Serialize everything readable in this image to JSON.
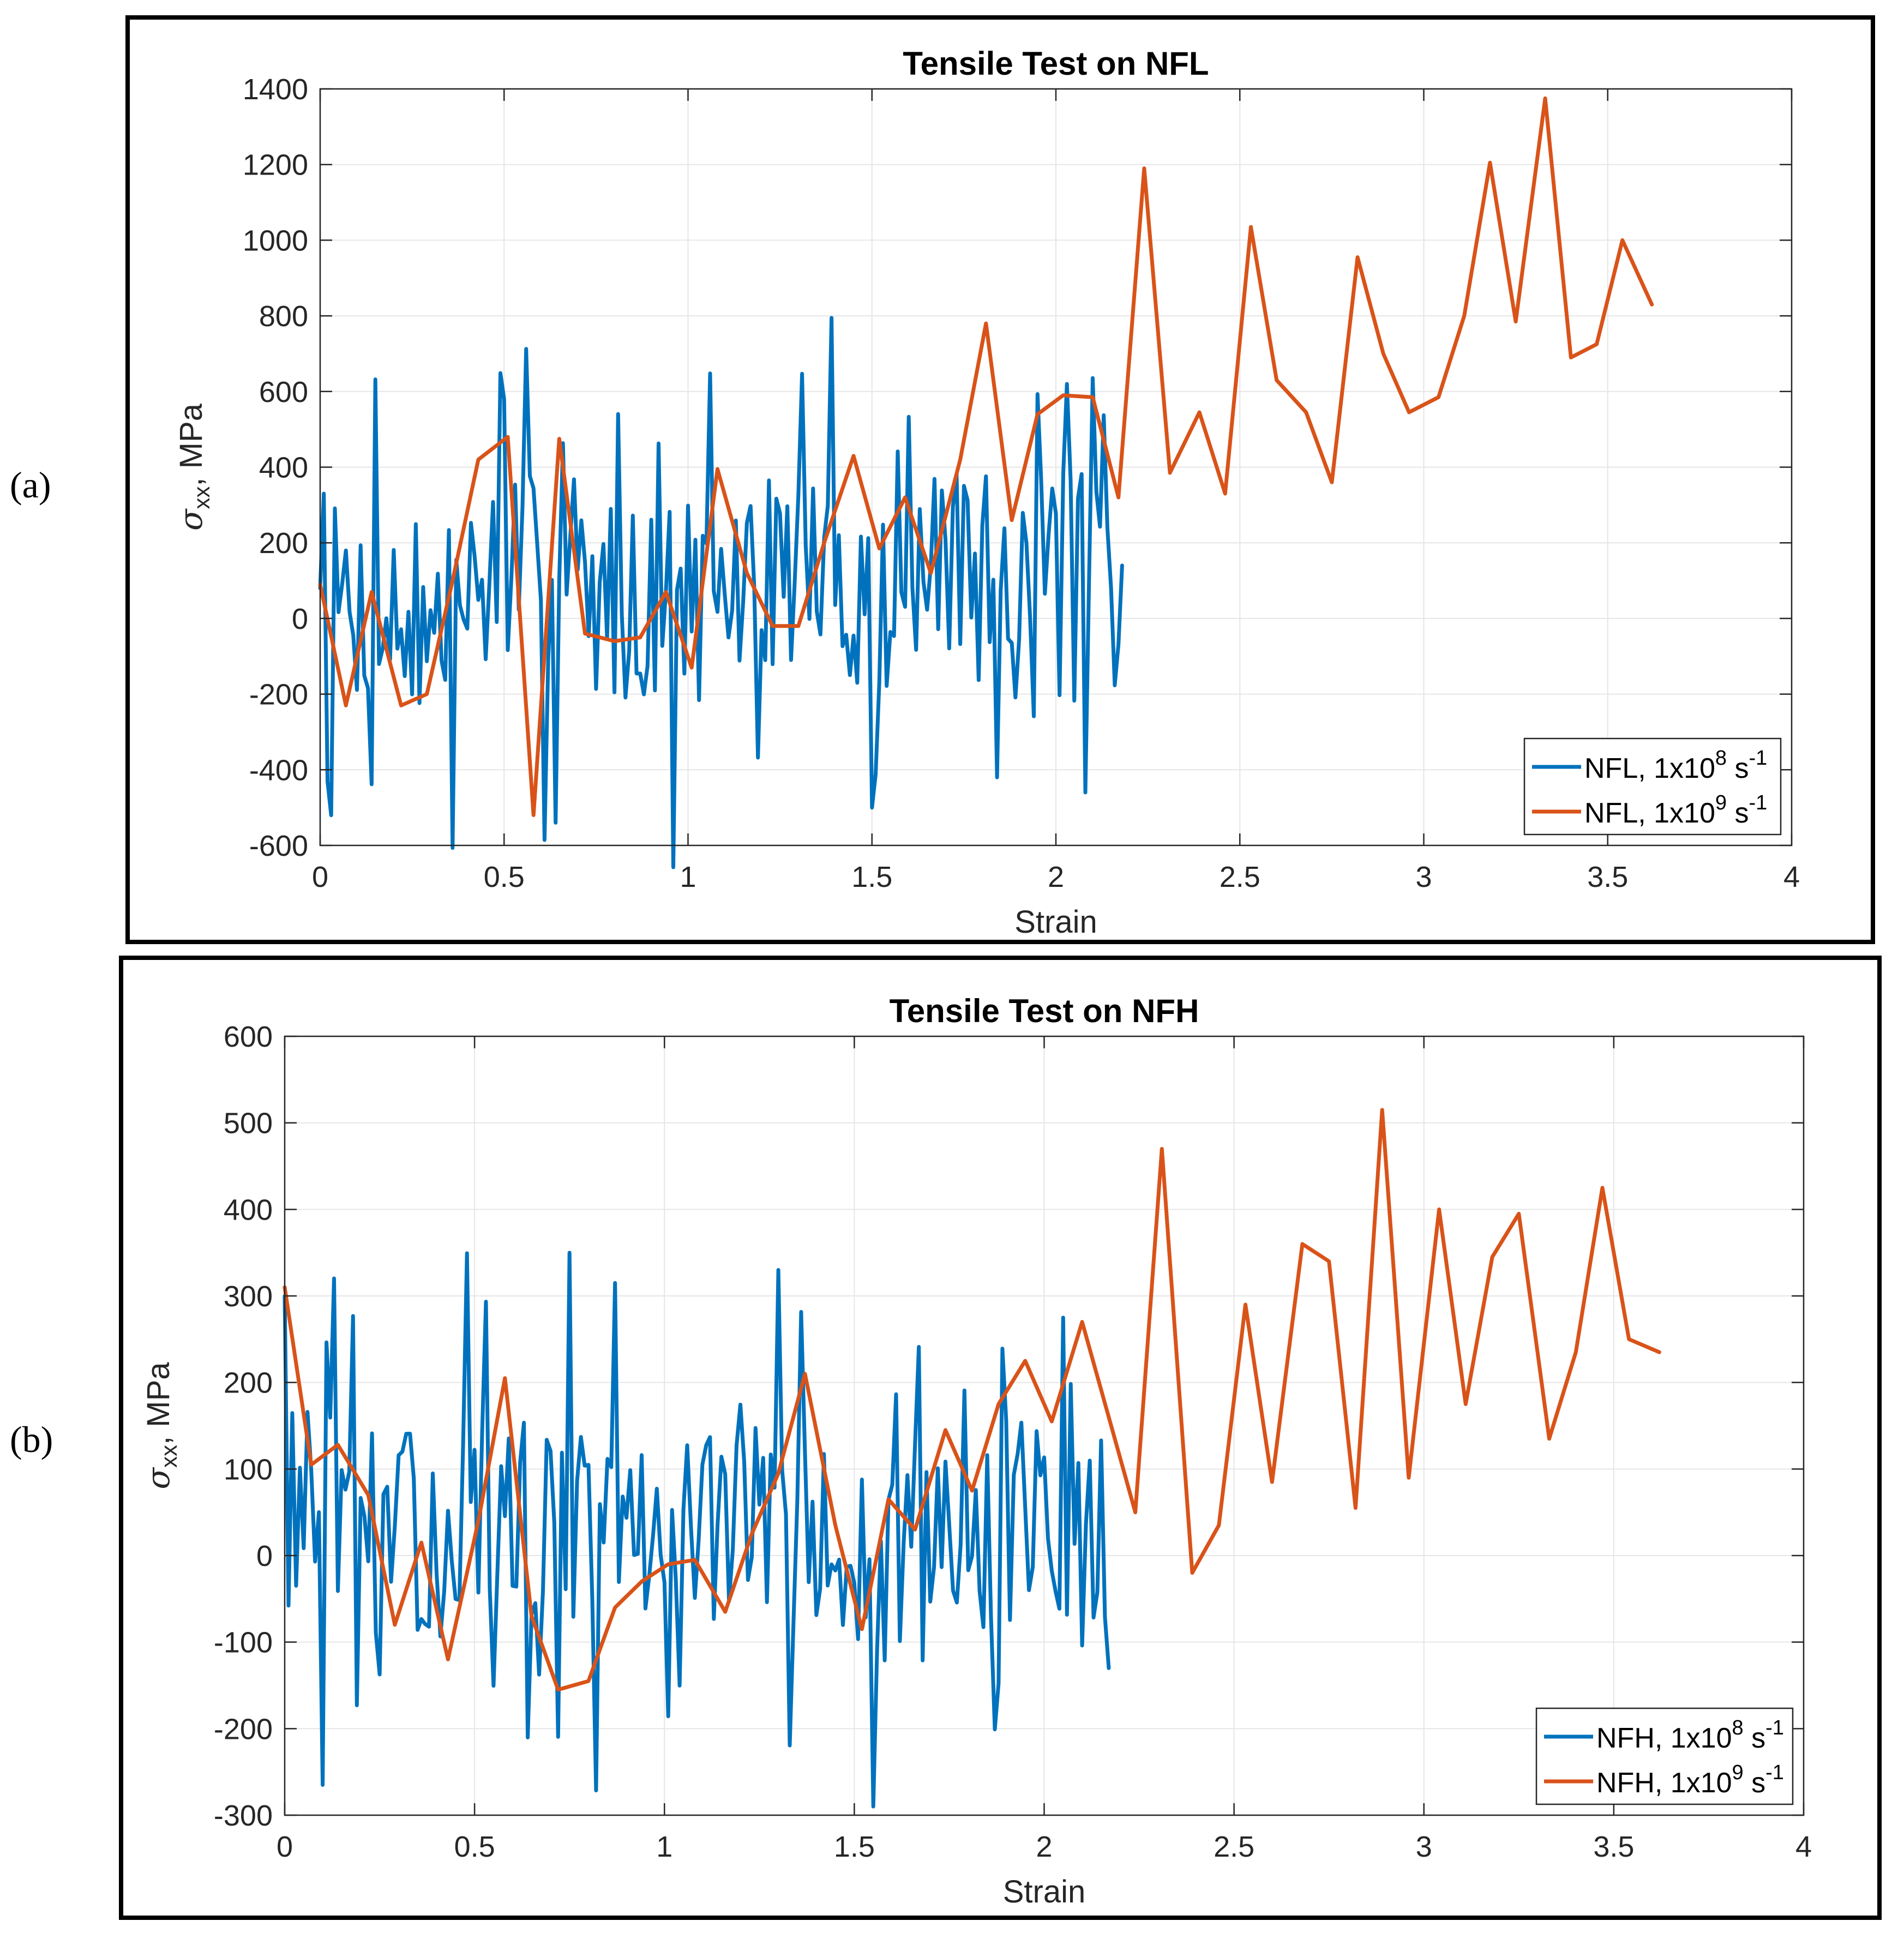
{
  "panels": [
    {
      "label": "(a)",
      "chart_data": {
        "type": "line",
        "title": "Tensile Test on NFL",
        "xlabel": "Strain",
        "ylabel": {
          "symbol": "σ",
          "subscript": "xx",
          "unit": ", MPa"
        },
        "xlim": [
          0,
          4
        ],
        "ylim": [
          -600,
          1400
        ],
        "xticks": [
          0,
          0.5,
          1,
          1.5,
          2,
          2.5,
          3,
          3.5,
          4
        ],
        "xtick_labels": [
          "0",
          "0.5",
          "1",
          "1.5",
          "2",
          "2.5",
          "3",
          "3.5",
          "4"
        ],
        "yticks": [
          -600,
          -400,
          -200,
          0,
          200,
          400,
          600,
          800,
          1000,
          1200,
          1400
        ],
        "ytick_labels": [
          "-600",
          "-400",
          "-200",
          "0",
          "200",
          "400",
          "600",
          "800",
          "1000",
          "1200",
          "1400"
        ],
        "grid": true,
        "legend_position": "bottom-right",
        "series": [
          {
            "name": "NFL, 1x10⁸ s⁻¹",
            "legend": {
              "base": "NFL, 1x10",
              "exp1": "8",
              "mid": " s",
              "exp2": "-1"
            },
            "color": "#0072BD",
            "noisy": {
              "x_start": 0,
              "x_end": 2.18,
              "step": 0.01,
              "seed": 7,
              "amp": 260,
              "spike": 500
            },
            "trend": [
              [
                0,
                60
              ],
              [
                0.3,
                -50
              ],
              [
                0.5,
                150
              ],
              [
                0.8,
                50
              ],
              [
                1.0,
                30
              ],
              [
                1.3,
                150
              ],
              [
                1.5,
                60
              ],
              [
                1.7,
                120
              ],
              [
                2.0,
                170
              ],
              [
                2.18,
                120
              ]
            ],
            "anchors": [
              [
                0,
                80
              ],
              [
                0.01,
                330
              ],
              [
                0.02,
                -430
              ],
              [
                0.5,
                580
              ],
              [
                0.64,
                -540
              ],
              [
                1.5,
                -500
              ],
              [
                1.84,
                -420
              ],
              [
                2.03,
                620
              ],
              [
                2.08,
                -460
              ],
              [
                2.18,
                140
              ]
            ]
          },
          {
            "name": "NFL, 1x10⁹ s⁻¹",
            "legend": {
              "base": "NFL, 1x10",
              "exp1": "9",
              "mid": " s",
              "exp2": "-1"
            },
            "color": "#D95319",
            "x": [
              0,
              0.07,
              0.14,
              0.22,
              0.29,
              0.36,
              0.43,
              0.51,
              0.58,
              0.65,
              0.72,
              0.8,
              0.87,
              0.94,
              1.01,
              1.08,
              1.16,
              1.23,
              1.3,
              1.37,
              1.45,
              1.52,
              1.59,
              1.66,
              1.74,
              1.81,
              1.88,
              1.95,
              2.02,
              2.1,
              2.17,
              2.24,
              2.31,
              2.39,
              2.46,
              2.53,
              2.6,
              2.68,
              2.75,
              2.82,
              2.89,
              2.96,
              3.04,
              3.11,
              3.18,
              3.25,
              3.33,
              3.4,
              3.47,
              3.54,
              3.62
            ],
            "y": [
              90,
              -230,
              70,
              -230,
              -200,
              100,
              420,
              480,
              -520,
              475,
              -40,
              -60,
              -50,
              70,
              -130,
              395,
              120,
              -20,
              -20,
              200,
              430,
              185,
              320,
              120,
              420,
              780,
              260,
              540,
              590,
              585,
              320,
              1190,
              385,
              545,
              330,
              1035,
              630,
              545,
              360,
              955,
              700,
              545,
              585,
              800,
              1205,
              785,
              1375,
              690,
              725,
              1000,
              830
            ]
          }
        ]
      }
    },
    {
      "label": "(b)",
      "chart_data": {
        "type": "line",
        "title": "Tensile Test on NFH",
        "xlabel": "Strain",
        "ylabel": {
          "symbol": "σ",
          "subscript": "xx",
          "unit": ", MPa"
        },
        "xlim": [
          0,
          4
        ],
        "ylim": [
          -300,
          600
        ],
        "xticks": [
          0,
          0.5,
          1,
          1.5,
          2,
          2.5,
          3,
          3.5,
          4
        ],
        "xtick_labels": [
          "0",
          "0.5",
          "1",
          "1.5",
          "2",
          "2.5",
          "3",
          "3.5",
          "4"
        ],
        "yticks": [
          -300,
          -200,
          -100,
          0,
          100,
          200,
          300,
          400,
          500,
          600
        ],
        "ytick_labels": [
          "-300",
          "-200",
          "-100",
          "0",
          "100",
          "200",
          "300",
          "400",
          "500",
          "600"
        ],
        "grid": true,
        "legend_position": "bottom-right",
        "series": [
          {
            "name": "NFH, 1x10⁸ s⁻¹",
            "legend": {
              "base": "NFH, 1x10",
              "exp1": "8",
              "mid": " s",
              "exp2": "-1"
            },
            "color": "#0072BD",
            "noisy": {
              "x_start": 0,
              "x_end": 2.17,
              "step": 0.01,
              "seed": 13,
              "amp": 120,
              "spike": 230
            },
            "trend": [
              [
                0,
                60
              ],
              [
                0.3,
                20
              ],
              [
                0.7,
                40
              ],
              [
                1.0,
                0
              ],
              [
                1.3,
                60
              ],
              [
                1.55,
                -40
              ],
              [
                1.8,
                20
              ],
              [
                2.0,
                40
              ],
              [
                2.17,
                20
              ]
            ],
            "anchors": [
              [
                0,
                300
              ],
              [
                0.1,
                -265
              ],
              [
                0.75,
                350
              ],
              [
                0.87,
                315
              ],
              [
                1.3,
                330
              ],
              [
                1.55,
                -290
              ],
              [
                2.05,
                275
              ],
              [
                2.17,
                -130
              ]
            ]
          },
          {
            "name": "NFH, 1x10⁹ s⁻¹",
            "legend": {
              "base": "NFH, 1x10",
              "exp1": "9",
              "mid": " s",
              "exp2": "-1"
            },
            "color": "#D95319",
            "x": [
              0,
              0.07,
              0.14,
              0.22,
              0.29,
              0.36,
              0.43,
              0.51,
              0.58,
              0.65,
              0.72,
              0.8,
              0.87,
              0.94,
              1.01,
              1.08,
              1.16,
              1.23,
              1.3,
              1.37,
              1.45,
              1.52,
              1.59,
              1.66,
              1.74,
              1.81,
              1.88,
              1.95,
              2.02,
              2.1,
              2.17,
              2.24,
              2.31,
              2.39,
              2.46,
              2.53,
              2.6,
              2.68,
              2.75,
              2.82,
              2.89,
              2.96,
              3.04,
              3.11,
              3.18,
              3.25,
              3.33,
              3.4,
              3.47,
              3.54,
              3.62
            ],
            "y": [
              310,
              105,
              128,
              70,
              -80,
              15,
              -120,
              40,
              205,
              -70,
              -155,
              -145,
              -60,
              -30,
              -10,
              -5,
              -65,
              25,
              95,
              210,
              35,
              -85,
              65,
              30,
              145,
              75,
              175,
              225,
              155,
              270,
              160,
              50,
              470,
              -20,
              35,
              290,
              85,
              360,
              340,
              55,
              515,
              90,
              400,
              175,
              345,
              395,
              135,
              235,
              425,
              250,
              235
            ]
          }
        ]
      }
    }
  ]
}
